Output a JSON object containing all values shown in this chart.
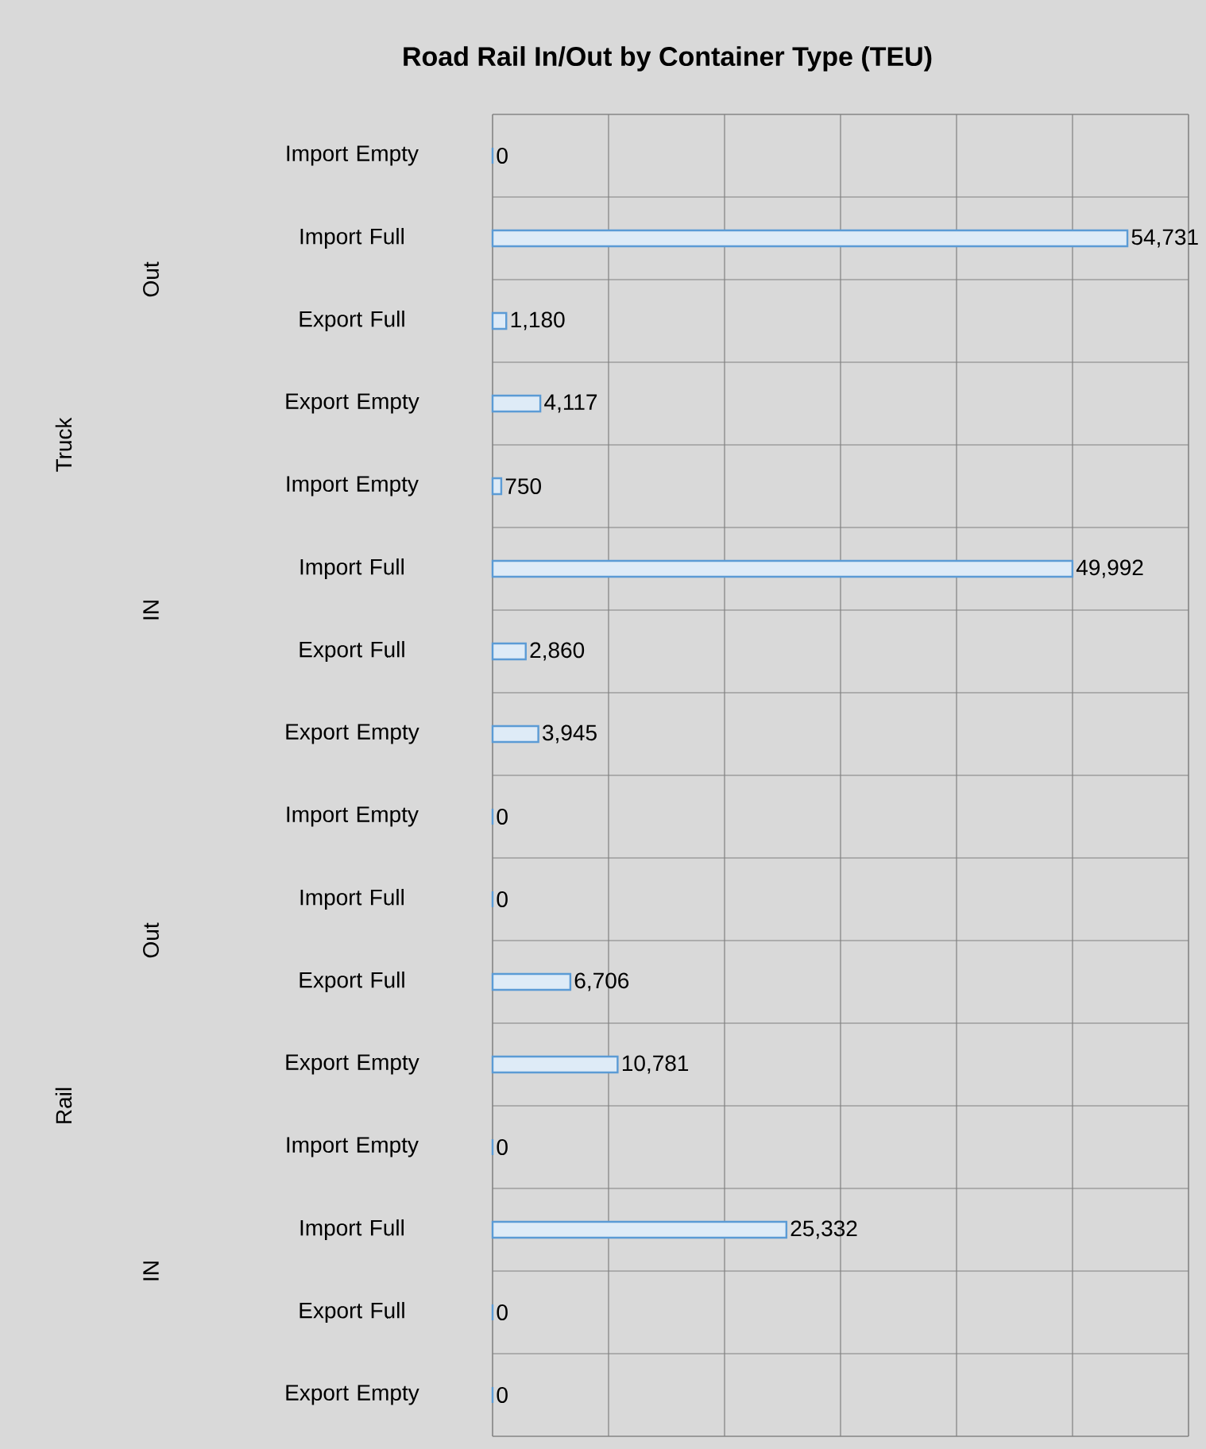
{
  "chart_data": {
    "type": "bar",
    "orientation": "horizontal",
    "title": "Road Rail In/Out by Container Type (TEU)",
    "categories": [
      "Import Empty",
      "Import Full",
      "Export Full",
      "Export Empty",
      "Import Empty",
      "Import Full",
      "Export Full",
      "Export Empty",
      "Import Empty",
      "Import Full",
      "Export Full",
      "Export Empty",
      "Import Empty",
      "Import Full",
      "Export Full",
      "Export Empty"
    ],
    "values": [
      0,
      54731,
      1180,
      4117,
      750,
      49992,
      2860,
      3945,
      0,
      0,
      6706,
      10781,
      0,
      25332,
      0,
      0
    ],
    "value_labels": [
      "0",
      "54,731",
      "1,180",
      "4,117",
      "750",
      "49,992",
      "2,860",
      "3,945",
      "0",
      "0",
      "6,706",
      "10,781",
      "0",
      "25,332",
      "0",
      "0"
    ],
    "color": "#5b9bd5",
    "xlim": [
      0,
      60000
    ],
    "xticks": [
      {
        "value": 0,
        "label": null
      },
      {
        "value": 10000,
        "label": null
      },
      {
        "value": 20000,
        "label": null
      },
      {
        "value": 30000,
        "label": null
      },
      {
        "value": 40000,
        "label": null
      },
      {
        "value": 50000,
        "label": null
      },
      {
        "value": 60000,
        "label": null
      }
    ],
    "tick_labels": "y",
    "grid": true,
    "annotations": [
      "Out",
      "IN",
      "Out",
      "IN",
      "Truck",
      "Rail"
    ]
  }
}
